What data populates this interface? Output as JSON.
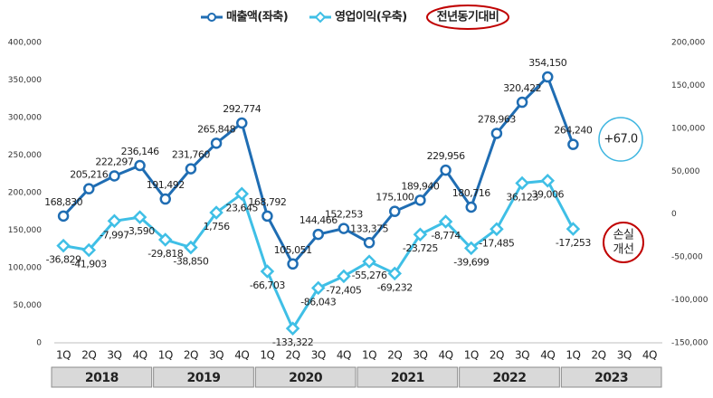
{
  "chart_data": {
    "type": "line",
    "categories": [
      "1Q",
      "2Q",
      "3Q",
      "4Q",
      "1Q",
      "2Q",
      "3Q",
      "4Q",
      "1Q",
      "2Q",
      "3Q",
      "4Q",
      "1Q",
      "2Q",
      "3Q",
      "4Q",
      "1Q",
      "2Q",
      "3Q",
      "4Q",
      "1Q",
      "2Q",
      "3Q",
      "4Q"
    ],
    "years": [
      "2018",
      "2019",
      "2020",
      "2021",
      "2022",
      "2023"
    ],
    "series": [
      {
        "name": "매출액(좌축)",
        "color": "#1f6db3",
        "axis": "y",
        "values": [
          168830,
          205216,
          222297,
          236146,
          191492,
          231760,
          265848,
          292774,
          168792,
          105051,
          144466,
          152253,
          133375,
          175100,
          189940,
          229956,
          180716,
          278963,
          320422,
          354150,
          264240,
          null,
          null,
          null
        ],
        "value_labels": [
          "168,830",
          "205,216",
          "222,297",
          "236,146",
          "191,492",
          "231,760",
          "265,848",
          "292,774",
          "168,792",
          "105,051",
          "144,466",
          "152,253",
          "133,375",
          "175,100",
          "189,940",
          "229,956",
          "180,716",
          "278,963",
          "320,422",
          "354,150",
          "264,240",
          null,
          null,
          null
        ]
      },
      {
        "name": "영업이익(우축)",
        "color": "#3fbfe6",
        "axis": "y2",
        "values": [
          -36829,
          -41903,
          -7997,
          -3590,
          -29818,
          -38850,
          1756,
          23645,
          -66703,
          -133322,
          -86043,
          -72405,
          -55276,
          -69232,
          -23725,
          -8774,
          -39699,
          -17485,
          36123,
          39006,
          -17253,
          null,
          null,
          null
        ],
        "value_labels": [
          "-36,829",
          "-41,903",
          "-7,997",
          "-3,590",
          "-29,818",
          "-38,850",
          "1,756",
          "23,645",
          "-66,703",
          "-133,322",
          "-86,043",
          "-72,405",
          "-55,276",
          "-69,232",
          "-23,725",
          "-8,774",
          "-39,699",
          "-17,485",
          "36,123",
          "39,006",
          "-17,253",
          null,
          null,
          null
        ]
      }
    ],
    "legend_note": "전년동기대비",
    "annotations": [
      {
        "text": "+67.0",
        "color": "#3cb5e0"
      },
      {
        "lines": [
          "손실",
          "개선"
        ],
        "color": "#c00000"
      }
    ],
    "ylim": [
      0,
      400000
    ],
    "yticks": [
      0,
      {
        "value": 50000,
        "label": "50,000"
      },
      {
        "value": 100000,
        "label": "100,000"
      },
      {
        "value": 150000,
        "label": "150,000"
      },
      {
        "value": 200000,
        "label": "200,000"
      },
      {
        "value": 250000,
        "label": "250,000"
      },
      {
        "value": 300000,
        "label": "300,000"
      },
      {
        "value": 350000,
        "label": "350,000"
      },
      {
        "value": 400000,
        "label": "400,000"
      }
    ],
    "y2lim": [
      -150000,
      200000
    ],
    "y2ticks": [
      {
        "value": -150000,
        "label": "-150,000"
      },
      {
        "value": -100000,
        "label": "-100,000"
      },
      {
        "value": -50000,
        "label": "-50,000"
      },
      0,
      {
        "value": 50000,
        "label": "50,000"
      },
      {
        "value": 100000,
        "label": "100,000"
      },
      {
        "value": 150000,
        "label": "150,000"
      },
      {
        "value": 200000,
        "label": "200,000"
      }
    ],
    "grid": false
  }
}
